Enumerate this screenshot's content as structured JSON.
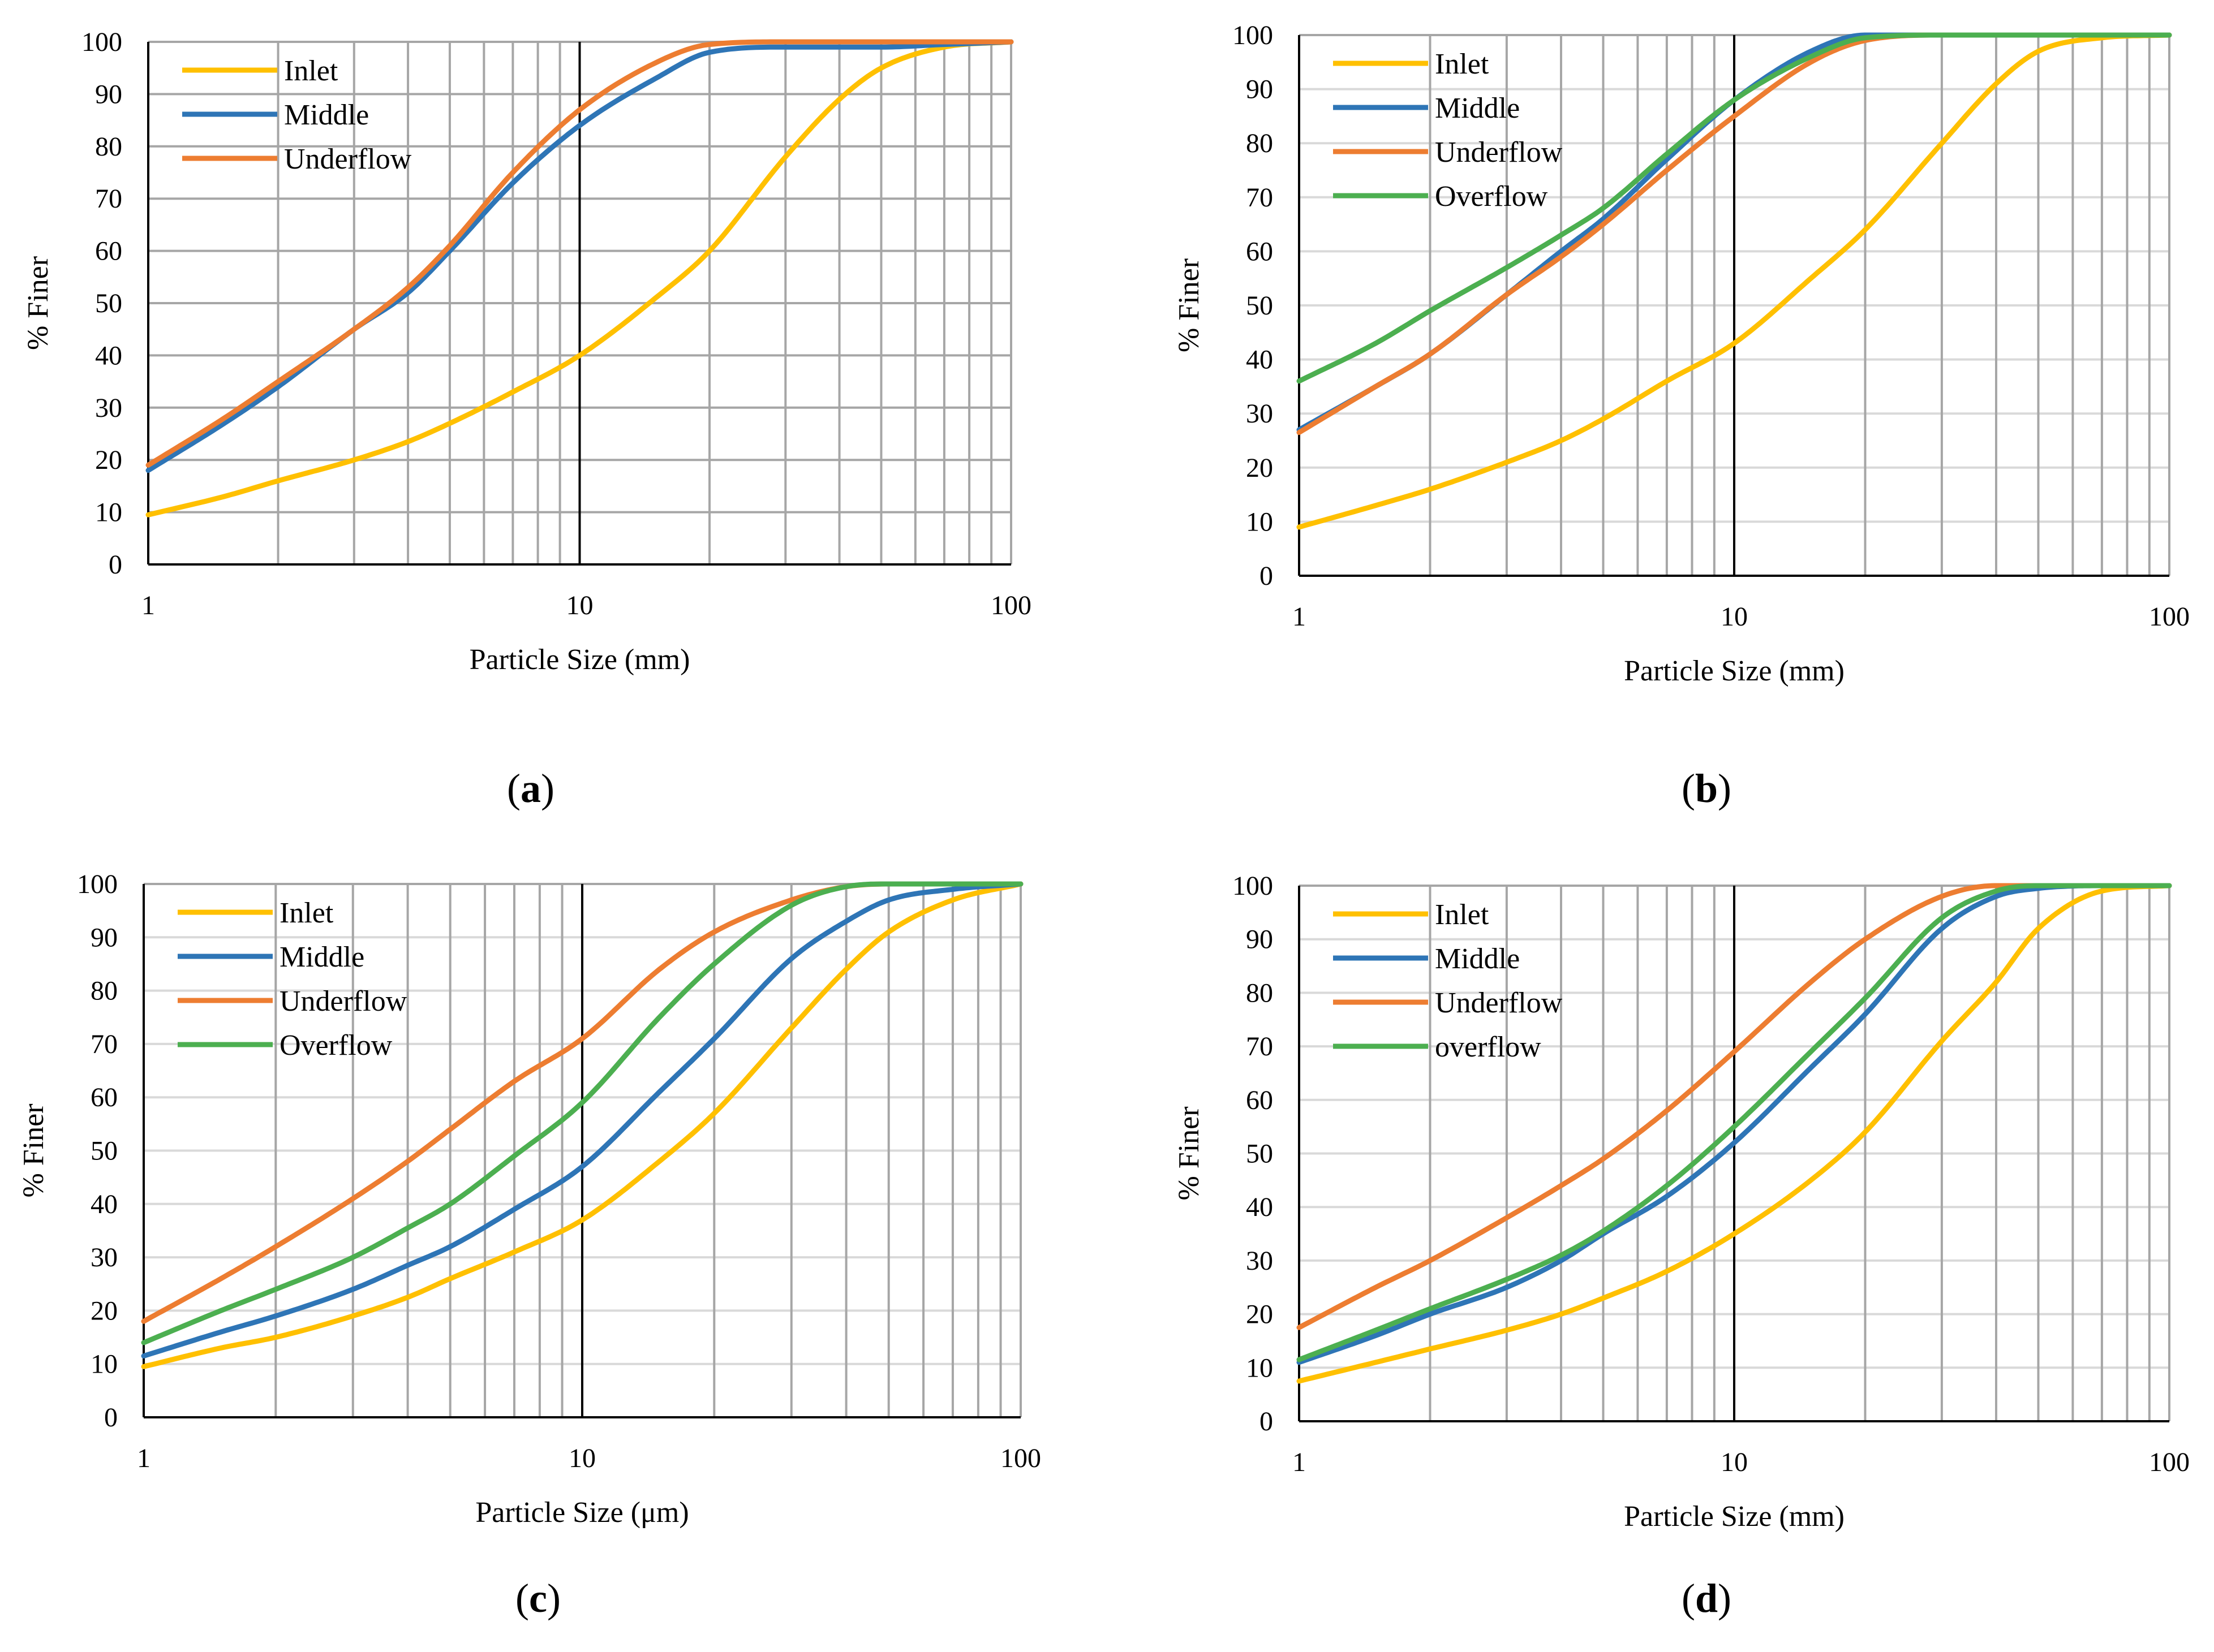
{
  "colors": {
    "inlet": "#FFC000",
    "middle": "#2E75B6",
    "underflow": "#ED7D31",
    "overflow": "#4CAF50",
    "grid_minor": "#A6A6A6",
    "grid_major": "#000000",
    "grid_light": "#D9D9D9"
  },
  "chart_data": [
    {
      "type": "line",
      "panel_label": "a",
      "xscale": "log",
      "xlim": [
        1,
        100
      ],
      "ylim": [
        0,
        100
      ],
      "xlabel": "Particle Size (mm)",
      "ylabel": "% Finer",
      "x_ticks": [
        "1",
        "10",
        "100"
      ],
      "y_ticks": [
        "0",
        "10",
        "20",
        "30",
        "40",
        "50",
        "60",
        "70",
        "80",
        "90",
        "100"
      ],
      "grid": "log-vertical",
      "legend_position": "top-left",
      "series": [
        {
          "name": "Inlet",
          "color_key": "inlet",
          "x": [
            1,
            1.5,
            2,
            3,
            4,
            5,
            7,
            10,
            15,
            20,
            30,
            40,
            50,
            70,
            100
          ],
          "y": [
            9.5,
            13,
            16,
            20,
            23.5,
            27,
            33,
            40,
            51,
            60,
            78,
            89,
            95,
            99,
            100
          ]
        },
        {
          "name": "Middle",
          "color_key": "middle",
          "x": [
            1,
            1.5,
            2,
            3,
            4,
            5,
            7,
            10,
            15,
            20,
            30,
            50,
            70,
            100
          ],
          "y": [
            18,
            27,
            34,
            45,
            52,
            60,
            73,
            84,
            93,
            98,
            99,
            99,
            99.5,
            100
          ]
        },
        {
          "name": "Underflow",
          "color_key": "underflow",
          "x": [
            1,
            1.5,
            2,
            3,
            4,
            5,
            7,
            10,
            15,
            20,
            30,
            50,
            100
          ],
          "y": [
            19,
            28,
            35,
            45,
            53,
            61,
            75,
            87,
            96,
            99.5,
            100,
            100,
            100
          ]
        }
      ]
    },
    {
      "type": "line",
      "panel_label": "b",
      "xscale": "log",
      "xlim": [
        1,
        100
      ],
      "ylim": [
        0,
        100
      ],
      "xlabel": "Particle Size (mm)",
      "ylabel": "% Finer",
      "x_ticks": [
        "1",
        "10",
        "100"
      ],
      "y_ticks": [
        "0",
        "10",
        "20",
        "30",
        "40",
        "50",
        "60",
        "70",
        "80",
        "90",
        "100"
      ],
      "grid": "log-vertical-plus-horizontal",
      "legend_position": "top-left",
      "series": [
        {
          "name": "Inlet",
          "color_key": "inlet",
          "x": [
            1,
            1.5,
            2,
            3,
            4,
            5,
            7,
            10,
            15,
            20,
            30,
            40,
            50,
            70,
            100
          ],
          "y": [
            9,
            13,
            16,
            21,
            25,
            29,
            36,
            43,
            55,
            64,
            80,
            91,
            97,
            99.5,
            100
          ]
        },
        {
          "name": "Middle",
          "color_key": "middle",
          "x": [
            1,
            1.5,
            2,
            3,
            4,
            5,
            7,
            10,
            15,
            20,
            30,
            100
          ],
          "y": [
            27,
            35,
            41,
            52,
            60,
            66,
            77,
            88,
            97,
            100,
            100,
            100
          ]
        },
        {
          "name": "Underflow",
          "color_key": "underflow",
          "x": [
            1,
            1.5,
            2,
            3,
            4,
            5,
            7,
            10,
            15,
            20,
            30,
            100
          ],
          "y": [
            26.5,
            35,
            41,
            52,
            59,
            65,
            75,
            85,
            95,
            99,
            100,
            100
          ]
        },
        {
          "name": "Overflow",
          "color_key": "overflow",
          "x": [
            1,
            1.5,
            2,
            3,
            4,
            5,
            7,
            10,
            15,
            20,
            30,
            100
          ],
          "y": [
            36,
            43,
            49,
            57,
            63,
            68,
            78,
            88,
            96,
            99.5,
            100,
            100
          ]
        }
      ]
    },
    {
      "type": "line",
      "panel_label": "c",
      "xscale": "log",
      "xlim": [
        1,
        100
      ],
      "ylim": [
        0,
        100
      ],
      "xlabel": "Particle Size (μm)",
      "ylabel": "% Finer",
      "x_ticks": [
        "1",
        "10",
        "100"
      ],
      "y_ticks": [
        "0",
        "10",
        "20",
        "30",
        "40",
        "50",
        "60",
        "70",
        "80",
        "90",
        "100"
      ],
      "grid": "log-vertical-plus-horizontal",
      "legend_position": "top-left",
      "series": [
        {
          "name": "Inlet",
          "color_key": "inlet",
          "x": [
            1,
            1.5,
            2,
            3,
            4,
            5,
            7,
            10,
            15,
            20,
            30,
            40,
            50,
            70,
            100
          ],
          "y": [
            9.5,
            13,
            15,
            19,
            22.5,
            26,
            31,
            37,
            48,
            57,
            73,
            84,
            91,
            97,
            100
          ]
        },
        {
          "name": "Middle",
          "color_key": "middle",
          "x": [
            1,
            1.5,
            2,
            3,
            4,
            5,
            7,
            10,
            15,
            20,
            30,
            40,
            50,
            70,
            100
          ],
          "y": [
            11.5,
            16,
            19,
            24,
            28.5,
            32,
            39,
            47,
            61,
            71,
            86,
            93,
            97,
            99,
            100
          ]
        },
        {
          "name": "Underflow",
          "color_key": "underflow",
          "x": [
            1,
            1.5,
            2,
            3,
            4,
            5,
            7,
            10,
            15,
            20,
            30,
            40,
            50,
            100
          ],
          "y": [
            18,
            26,
            32,
            41,
            48,
            54,
            63,
            71,
            84,
            91,
            97,
            99.5,
            100,
            100
          ]
        },
        {
          "name": "Overflow",
          "color_key": "overflow",
          "x": [
            1,
            1.5,
            2,
            3,
            4,
            5,
            7,
            10,
            15,
            20,
            30,
            40,
            50,
            100
          ],
          "y": [
            14,
            20,
            24,
            30,
            35.5,
            40,
            49,
            59,
            75,
            85,
            96,
            99.5,
            100,
            100
          ]
        }
      ]
    },
    {
      "type": "line",
      "panel_label": "d",
      "xscale": "log",
      "xlim": [
        1,
        100
      ],
      "ylim": [
        0,
        100
      ],
      "xlabel": "Particle Size (mm)",
      "ylabel": "% Finer",
      "x_ticks": [
        "1",
        "10",
        "100"
      ],
      "y_ticks": [
        "0",
        "10",
        "20",
        "30",
        "40",
        "50",
        "60",
        "70",
        "80",
        "90",
        "100"
      ],
      "grid": "log-vertical-plus-horizontal",
      "legend_position": "top-left",
      "series": [
        {
          "name": "Inlet",
          "color_key": "inlet",
          "x": [
            1,
            1.5,
            2,
            3,
            4,
            5,
            7,
            10,
            15,
            20,
            30,
            40,
            50,
            70,
            100
          ],
          "y": [
            7.5,
            11,
            13.5,
            17,
            20,
            23,
            28,
            35,
            45,
            54,
            71,
            82,
            92,
            99,
            100
          ]
        },
        {
          "name": "Middle",
          "color_key": "middle",
          "x": [
            1,
            1.5,
            2,
            3,
            4,
            5,
            7,
            10,
            15,
            20,
            30,
            40,
            50,
            70,
            100
          ],
          "y": [
            11,
            16,
            20,
            25,
            30,
            35,
            42,
            52,
            66,
            76,
            92,
            98,
            99.5,
            100,
            100
          ]
        },
        {
          "name": "Underflow",
          "color_key": "underflow",
          "x": [
            1,
            1.5,
            2,
            3,
            4,
            5,
            7,
            10,
            15,
            20,
            30,
            40,
            100
          ],
          "y": [
            17.5,
            25,
            30,
            38,
            44,
            49,
            58,
            69,
            82,
            90,
            98,
            100,
            100
          ]
        },
        {
          "name": "overflow",
          "color_key": "overflow",
          "x": [
            1,
            1.5,
            2,
            3,
            4,
            5,
            7,
            10,
            15,
            20,
            30,
            40,
            50,
            100
          ],
          "y": [
            11.5,
            17,
            21,
            26.5,
            31,
            35.5,
            44,
            55,
            69,
            79,
            94,
            99,
            100,
            100
          ]
        }
      ]
    }
  ]
}
